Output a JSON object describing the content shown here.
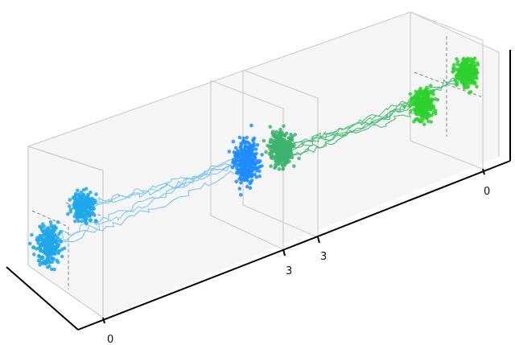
{
  "chart_data": [
    {
      "type": "scatter",
      "panel": "left",
      "x_tick_labels": [
        "0",
        "3"
      ],
      "colors": {
        "start_cluster": "#1fa8ea",
        "end_cluster": "#1f8cff",
        "paths": "#7fc8f0"
      },
      "clusters": [
        {
          "t": 0,
          "center": [
            0.0,
            -1.0
          ],
          "spread": 0.25
        },
        {
          "t": 0,
          "center": [
            0.6,
            0.6
          ],
          "spread": 0.2
        },
        {
          "t": 3,
          "center": [
            0.0,
            0.0
          ],
          "spread": 0.25
        }
      ],
      "num_paths": 6,
      "grid": false
    },
    {
      "type": "scatter",
      "panel": "right",
      "x_tick_labels": [
        "3",
        "0"
      ],
      "colors": {
        "start_cluster": "#3cb46e",
        "end_cluster": "#2ed12e",
        "paths": "#4cbf7a"
      },
      "clusters": [
        {
          "t": 3,
          "center": [
            0.0,
            0.0
          ],
          "spread": 0.25
        },
        {
          "t": 0,
          "center": [
            -0.6,
            -0.6
          ],
          "spread": 0.2
        },
        {
          "t": 0,
          "center": [
            0.6,
            0.6
          ],
          "spread": 0.2
        }
      ],
      "num_paths": 6,
      "grid": false
    }
  ],
  "axes": {
    "left_t0": "0",
    "left_t3": "3",
    "right_t3": "3",
    "right_t0": "0"
  }
}
